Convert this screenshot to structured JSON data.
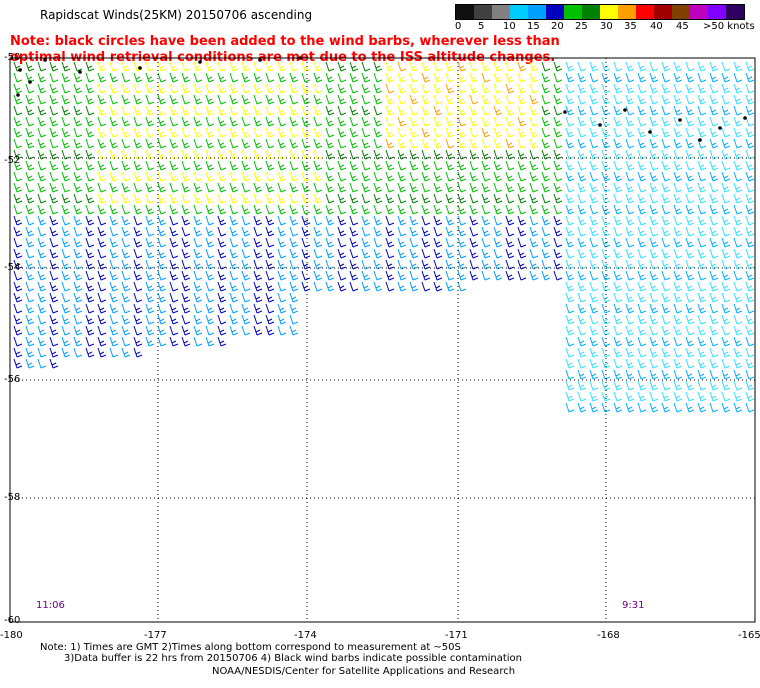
{
  "title": "Rapidscat Winds(25KM) 20150706 ascending",
  "note": "Note: black circles have been added to the wind barbs, wherever less than optimal wind retrieval conditions are met due to the ISS altitude changes.",
  "colorbar": {
    "colors": [
      "#101010",
      "#404040",
      "#808080",
      "#00ccff",
      "#00a0ff",
      "#0000c0",
      "#00c000",
      "#008000",
      "#ffff00",
      "#ffa000",
      "#ff0000",
      "#a00000",
      "#804000",
      "#c000c0",
      "#8000ff",
      "#300060"
    ],
    "labels": [
      "0",
      "5",
      "10",
      "15",
      "20",
      "25",
      "30",
      "35",
      "40",
      "45",
      ">50 knots"
    ]
  },
  "axes": {
    "y_labels": [
      "-50",
      "-52",
      "-54",
      "-56",
      "-58",
      "-60"
    ],
    "x_labels": [
      "-180",
      "-177",
      "-174",
      "-171",
      "-168",
      "-165"
    ]
  },
  "times": {
    "left": "11:06",
    "right": "9:31"
  },
  "footnotes": {
    "line1": "Note: 1) Times are GMT 2)Times along bottom correspond to measurement at ~50S",
    "line2": "3)Data buffer is 22 hrs from 20150706 4) Black wind barbs indicate possible contamination",
    "line3": "NOAA/NESDIS/Center for Satellite Applications and Research"
  }
}
